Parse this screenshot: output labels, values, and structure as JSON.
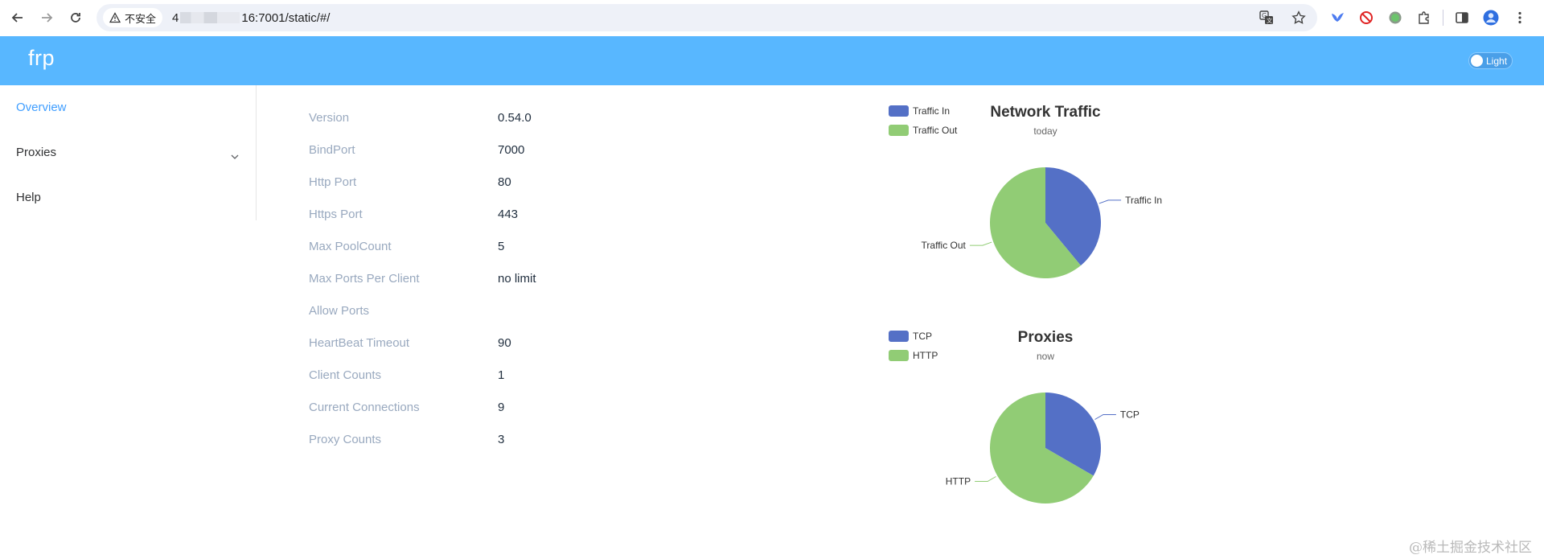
{
  "browser": {
    "security_label": "不安全",
    "url_prefix": "4",
    "url_suffix": "16:7001/static/#/"
  },
  "app": {
    "brand": "frp",
    "theme_label": "Light"
  },
  "sidebar": {
    "items": [
      {
        "label": "Overview",
        "active": true
      },
      {
        "label": "Proxies",
        "active": false
      },
      {
        "label": "Help",
        "active": false
      }
    ]
  },
  "info": [
    {
      "key": "Version",
      "value": "0.54.0"
    },
    {
      "key": "BindPort",
      "value": "7000"
    },
    {
      "key": "Http Port",
      "value": "80"
    },
    {
      "key": "Https Port",
      "value": "443"
    },
    {
      "key": "Max PoolCount",
      "value": "5"
    },
    {
      "key": "Max Ports Per Client",
      "value": "no limit"
    },
    {
      "key": "Allow Ports",
      "value": ""
    },
    {
      "key": "HeartBeat Timeout",
      "value": "90"
    },
    {
      "key": "Client Counts",
      "value": "1"
    },
    {
      "key": "Current Connections",
      "value": "9"
    },
    {
      "key": "Proxy Counts",
      "value": "3"
    }
  ],
  "chart_data": [
    {
      "type": "pie",
      "title": "Network Traffic",
      "subtitle": "today",
      "legend_position": "top-left",
      "categories": [
        "Traffic In",
        "Traffic Out"
      ],
      "values": [
        39,
        61
      ],
      "colors": [
        "#5470c6",
        "#91cc75"
      ]
    },
    {
      "type": "pie",
      "title": "Proxies",
      "subtitle": "now",
      "legend_position": "top-left",
      "categories": [
        "TCP",
        "HTTP"
      ],
      "values": [
        1,
        2
      ],
      "colors": [
        "#5470c6",
        "#91cc75"
      ]
    }
  ],
  "watermark": "@稀土掘金技术社区"
}
